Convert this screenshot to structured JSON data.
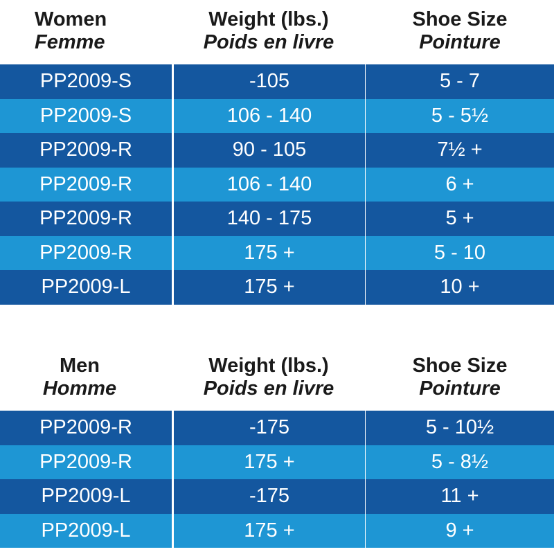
{
  "tables": [
    {
      "headers": [
        {
          "en": "Women",
          "fr": "Femme"
        },
        {
          "en": "Weight (lbs.)",
          "fr": "Poids en livre"
        },
        {
          "en": "Shoe Size",
          "fr": "Pointure"
        }
      ],
      "rows": [
        [
          "PP2009-S",
          "-105",
          "5 - 7"
        ],
        [
          "PP2009-S",
          "106 - 140",
          "5 - 5½"
        ],
        [
          "PP2009-R",
          "90 - 105",
          "7½ +"
        ],
        [
          "PP2009-R",
          "106 - 140",
          "6 +"
        ],
        [
          "PP2009-R",
          "140 - 175",
          "5 +"
        ],
        [
          "PP2009-R",
          "175 +",
          "5 - 10"
        ],
        [
          "PP2009-L",
          "175 +",
          "10 +"
        ]
      ]
    },
    {
      "headers": [
        {
          "en": "Men",
          "fr": "Homme"
        },
        {
          "en": "Weight (lbs.)",
          "fr": "Poids en livre"
        },
        {
          "en": "Shoe Size",
          "fr": "Pointure"
        }
      ],
      "rows": [
        [
          "PP2009-R",
          "-175",
          "5 - 10½"
        ],
        [
          "PP2009-R",
          "175 +",
          "5 - 8½"
        ],
        [
          "PP2009-L",
          "-175",
          "11 +"
        ],
        [
          "PP2009-L",
          "175 +",
          "9 +"
        ]
      ]
    }
  ],
  "colors": {
    "row_dark": "#14579f",
    "row_light": "#1e96d4",
    "header_text": "#1a1a1a",
    "cell_text": "#ffffff"
  }
}
